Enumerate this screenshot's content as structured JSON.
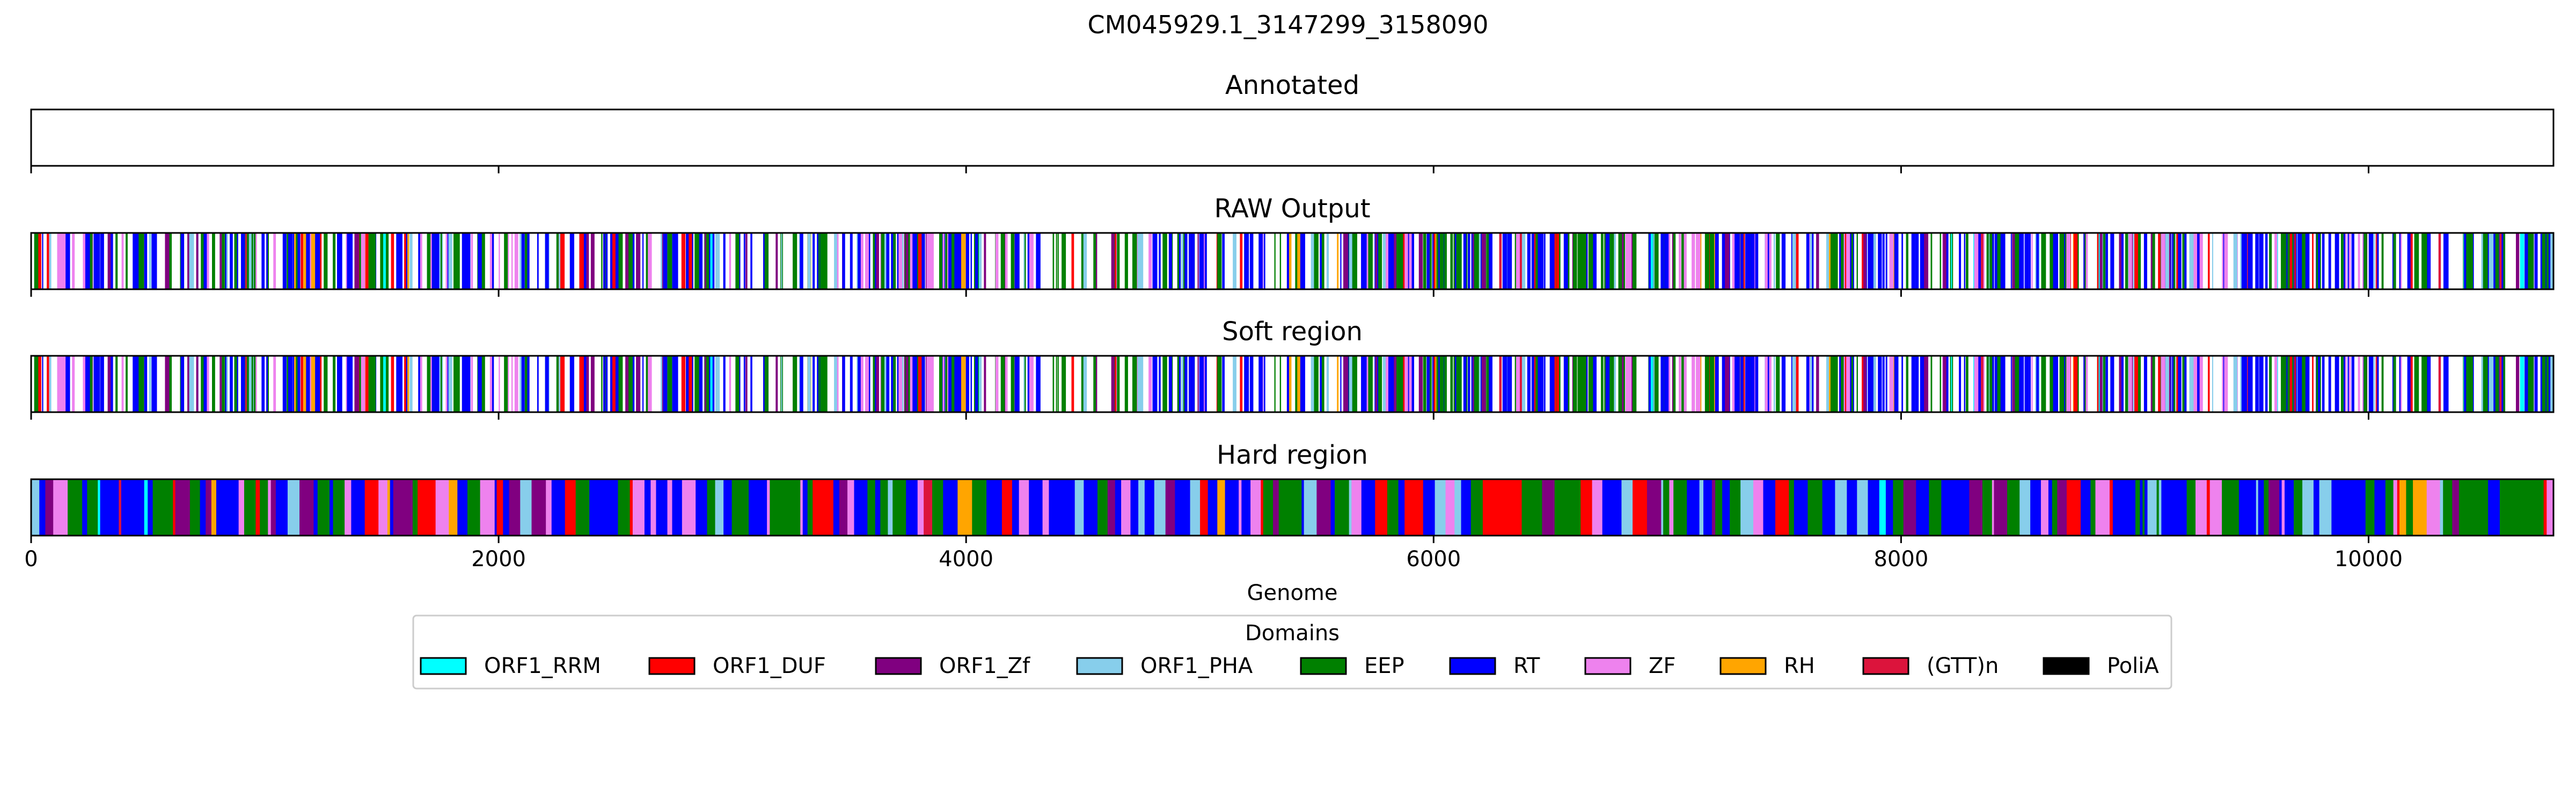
{
  "chart_data": {
    "type": "track",
    "title": "CM045929.1_3147299_3158090",
    "xlabel": "Genome",
    "xlim": [
      0,
      10791
    ],
    "xticks": [
      0,
      2000,
      4000,
      6000,
      8000,
      10000
    ],
    "xtick_labels": [
      "0",
      "2000",
      "4000",
      "6000",
      "8000",
      "10000"
    ],
    "panels": [
      {
        "title": "Annotated",
        "fill": "none"
      },
      {
        "title": "RAW Output",
        "fill": "sparse"
      },
      {
        "title": "Soft region",
        "fill": "sparse"
      },
      {
        "title": "Hard region",
        "fill": "dense"
      }
    ],
    "legend": {
      "title": "Domains",
      "placement": "below",
      "entries": [
        {
          "label": "ORF1_RRM",
          "color": "#00ffff"
        },
        {
          "label": "ORF1_DUF",
          "color": "#ff0000"
        },
        {
          "label": "ORF1_Zf",
          "color": "#800080"
        },
        {
          "label": "ORF1_PHA",
          "color": "#87ceeb"
        },
        {
          "label": "EEP",
          "color": "#008000"
        },
        {
          "label": "RT",
          "color": "#0000ff"
        },
        {
          "label": "ZF",
          "color": "#ee82ee"
        },
        {
          "label": "RH",
          "color": "#ffa500"
        },
        {
          "label": "(GTT)n",
          "color": "#dc143c"
        },
        {
          "label": "PoliA",
          "color": "#000000"
        }
      ]
    }
  }
}
